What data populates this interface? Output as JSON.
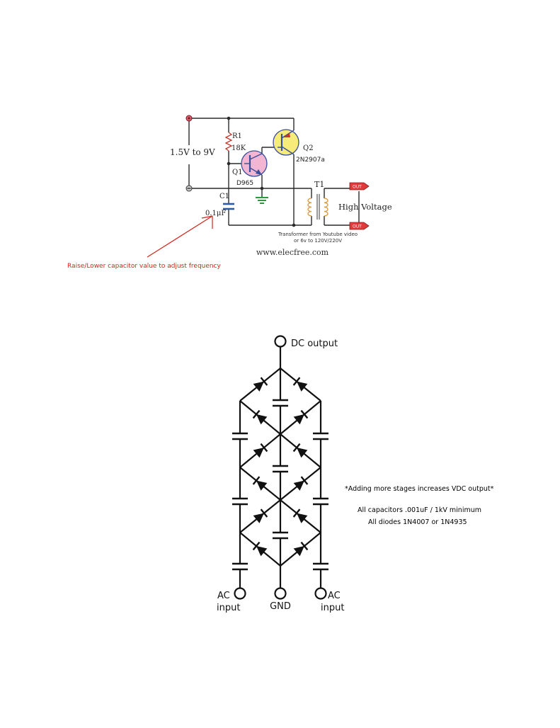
{
  "oscillator": {
    "supply_label": "1.5V to 9V",
    "r1_name": "R1",
    "r1_value": "18K",
    "q1_name": "Q1",
    "q1_part": "D965",
    "q2_name": "Q2",
    "q2_part": "2N2907a",
    "c1_name": "C1",
    "c1_value": "0.1μF",
    "t1_name": "T1",
    "output_label": "High Voltage",
    "out_tag_top": "OUT",
    "out_tag_bottom": "OUT",
    "transformer_note_line1": "Transformer from Youtube video",
    "transformer_note_line2": "or 6v to 120V/220V",
    "site": "www.elecfree.com",
    "capacitor_note": "Raise/Lower capacitor value to adjust frequency"
  },
  "multiplier": {
    "dc_output": "DC output",
    "ac_input_left_1": "AC",
    "ac_input_left_2": "input",
    "gnd": "GND",
    "ac_input_right_1": "AC",
    "ac_input_right_2": "input",
    "note_stages": "*Adding more stages increases VDC output*",
    "note_capacitors": "All capacitors .001uF / 1kV minimum",
    "note_diodes": "All diodes 1N4007 or 1N4935"
  },
  "colors": {
    "annotation": "#d0261b",
    "q1_fill": "#f2b6d2",
    "q2_fill": "#f7ec7a",
    "transformer": "#d99a3a",
    "out_tag": "#e03a3a",
    "capacitor": "#2c5aa8",
    "ground": "#2a9a3a"
  }
}
